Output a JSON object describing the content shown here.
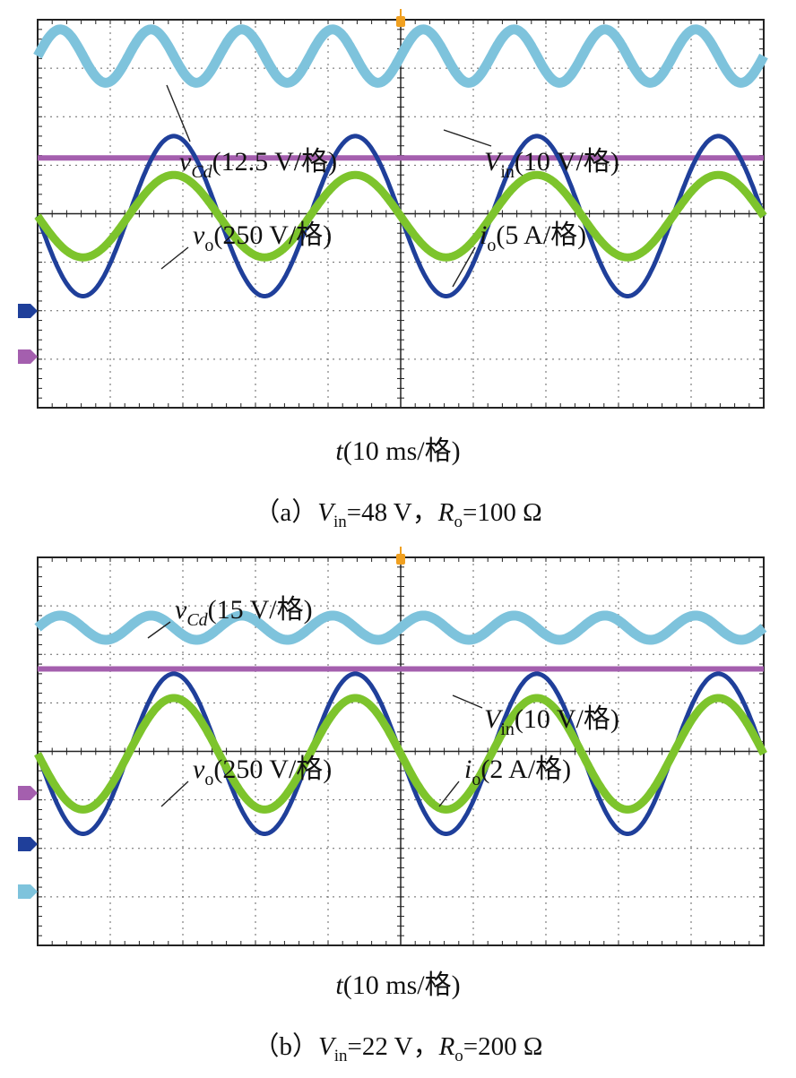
{
  "panels": [
    {
      "id": "a",
      "channels": {
        "vcd": {
          "name": "v",
          "sub": "Cd",
          "scale": "(12.5 V/格)",
          "color": "#7ec3dc"
        },
        "vin": {
          "name": "V",
          "sub": "in",
          "scale": "(10 V/格)",
          "color": "#a45fae"
        },
        "vo": {
          "name": "v",
          "sub": "o",
          "scale": "(250 V/格)",
          "color": "#1f3f9a"
        },
        "io": {
          "name": "i",
          "sub": "o",
          "scale": "(5 A/格)",
          "color": "#7dc42c"
        }
      },
      "time_axis": {
        "var": "t",
        "scale": "(10 ms/格)"
      },
      "caption": {
        "prefix": "（a）",
        "v": "V",
        "v_sub": "in",
        "v_val": "=48 V，",
        "r": "R",
        "r_sub": "o",
        "r_val": "=100 Ω"
      }
    },
    {
      "id": "b",
      "channels": {
        "vcd": {
          "name": "v",
          "sub": "Cd",
          "scale": "(15 V/格)",
          "color": "#7ec3dc"
        },
        "vin": {
          "name": "V",
          "sub": "in",
          "scale": "(10 V/格)",
          "color": "#a45fae"
        },
        "vo": {
          "name": "v",
          "sub": "o",
          "scale": "(250 V/格)",
          "color": "#1f3f9a"
        },
        "io": {
          "name": "i",
          "sub": "o",
          "scale": "(2 A/格)",
          "color": "#7dc42c"
        }
      },
      "time_axis": {
        "var": "t",
        "scale": "(10 ms/格)"
      },
      "caption": {
        "prefix": "（b）",
        "v": "V",
        "v_sub": "in",
        "v_val": "=22 V，",
        "r": "R",
        "r_sub": "o",
        "r_val": "=200 Ω"
      }
    }
  ],
  "chart_data": [
    {
      "type": "line",
      "title": "",
      "x_divisions": 10,
      "x_per_div": "10 ms",
      "series": [
        {
          "name": "vCd",
          "waveform": "sine",
          "cycles_on_screen": 8,
          "amplitude_div": 0.55,
          "offset_div": 3.25
        },
        {
          "name": "Vin",
          "waveform": "dc",
          "offset_div": 1.15
        },
        {
          "name": "vo",
          "waveform": "sine",
          "cycles_on_screen": 4,
          "amplitude_div": 1.65,
          "offset_div": -0.05
        },
        {
          "name": "io",
          "waveform": "sine",
          "cycles_on_screen": 4,
          "amplitude_div": 0.85,
          "offset_div": -0.05
        }
      ],
      "grid": true
    },
    {
      "type": "line",
      "title": "",
      "x_divisions": 10,
      "x_per_div": "10 ms",
      "series": [
        {
          "name": "vCd",
          "waveform": "sine",
          "cycles_on_screen": 8,
          "amplitude_div": 0.25,
          "offset_div": 2.55
        },
        {
          "name": "Vin",
          "waveform": "dc",
          "offset_div": 1.7
        },
        {
          "name": "vo",
          "waveform": "sine",
          "cycles_on_screen": 4,
          "amplitude_div": 1.65,
          "offset_div": -0.05
        },
        {
          "name": "io",
          "waveform": "sine",
          "cycles_on_screen": 4,
          "amplitude_div": 1.15,
          "offset_div": -0.05
        }
      ],
      "grid": true
    }
  ]
}
